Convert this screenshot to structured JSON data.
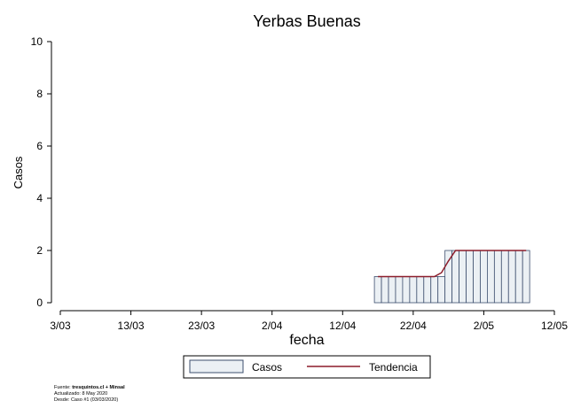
{
  "chart_data": {
    "type": "bar",
    "title": "Yerbas Buenas",
    "xlabel": "fecha",
    "ylabel": "Casos",
    "ylim": [
      0,
      10
    ],
    "yticks": [
      0,
      2,
      4,
      6,
      8,
      10
    ],
    "xlim": [
      "2020-03-03",
      "2020-05-12"
    ],
    "xticks": [
      {
        "date": "2020-03-03",
        "label": "3/03"
      },
      {
        "date": "2020-03-13",
        "label": "13/03"
      },
      {
        "date": "2020-03-23",
        "label": "23/03"
      },
      {
        "date": "2020-04-02",
        "label": "2/04"
      },
      {
        "date": "2020-04-12",
        "label": "12/04"
      },
      {
        "date": "2020-04-22",
        "label": "22/04"
      },
      {
        "date": "2020-05-02",
        "label": "2/05"
      },
      {
        "date": "2020-05-12",
        "label": "12/05"
      }
    ],
    "x": [
      "2020-04-17",
      "2020-04-18",
      "2020-04-19",
      "2020-04-20",
      "2020-04-21",
      "2020-04-22",
      "2020-04-23",
      "2020-04-24",
      "2020-04-25",
      "2020-04-26",
      "2020-04-27",
      "2020-04-28",
      "2020-04-29",
      "2020-04-30",
      "2020-05-01",
      "2020-05-02",
      "2020-05-03",
      "2020-05-04",
      "2020-05-05",
      "2020-05-06",
      "2020-05-07",
      "2020-05-08"
    ],
    "series": [
      {
        "name": "Casos",
        "values": [
          1,
          1,
          1,
          1,
          1,
          1,
          1,
          1,
          1,
          1,
          2,
          2,
          2,
          2,
          2,
          2,
          2,
          2,
          2,
          2,
          2,
          2
        ]
      },
      {
        "name": "Tendencia",
        "values": [
          1,
          1,
          1,
          1,
          1,
          1,
          1,
          1,
          1,
          1.15,
          1.6,
          2,
          2,
          2,
          2,
          2,
          2,
          2,
          2,
          2,
          2,
          2
        ]
      }
    ],
    "grid": false,
    "legend": {
      "position": "bottom",
      "entries": [
        "Casos",
        "Tendencia"
      ]
    }
  },
  "colors": {
    "bar_fill": "#ebf0f4",
    "bar_stroke": "#3d4f6e",
    "trend_line": "#8c1c2a"
  },
  "footer": {
    "line1_prefix": "Fuente: ",
    "line1_bold": "tresquintos.cl + Minsal",
    "line2": "Actualizado: 8 May 2020",
    "line3": "Desde: Caso #1  (03/03/2020)"
  }
}
